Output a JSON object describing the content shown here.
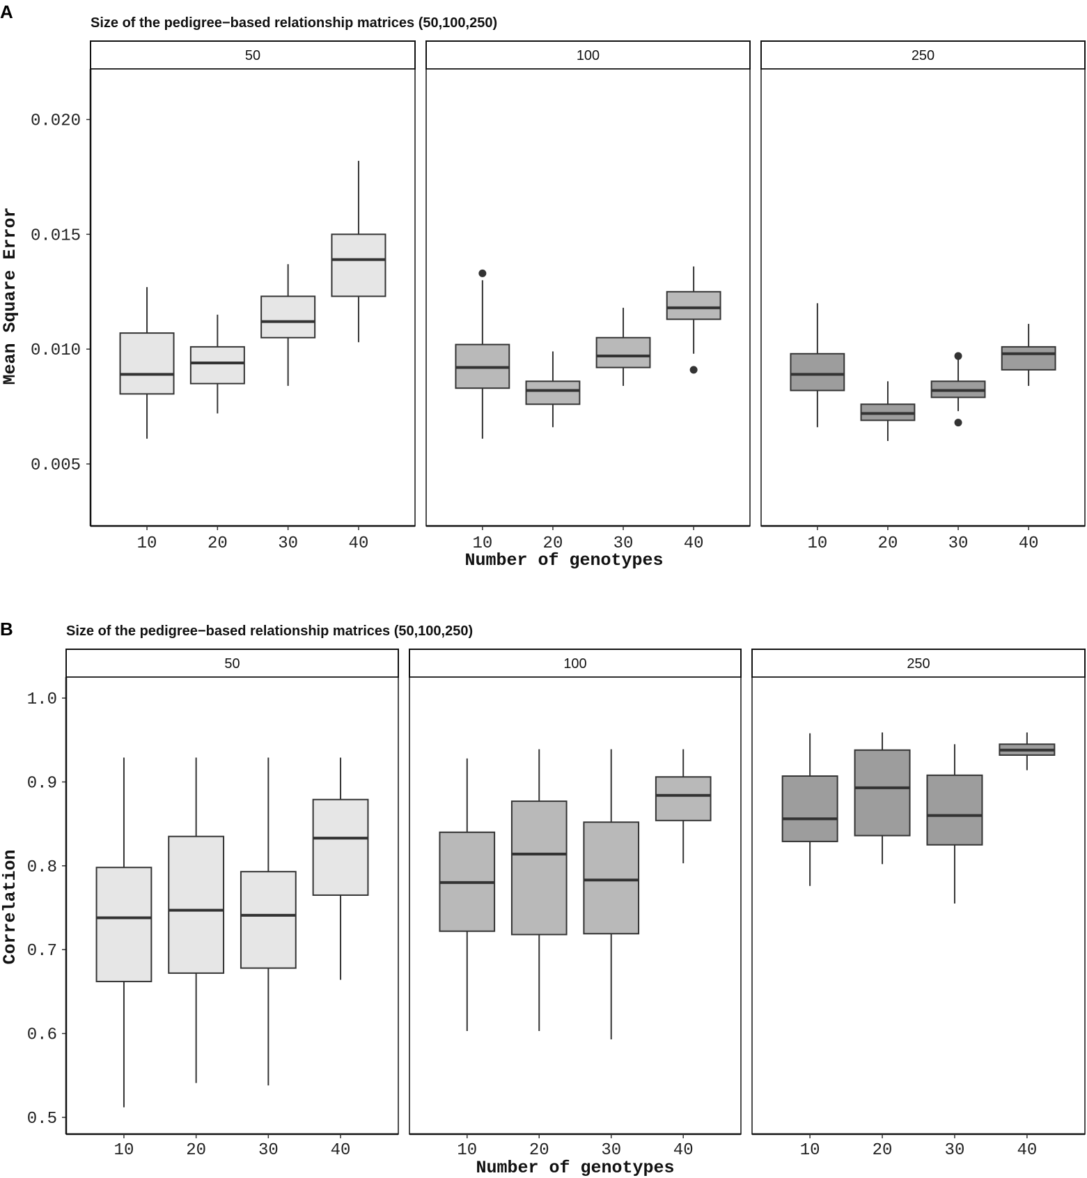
{
  "chart_data": [
    {
      "panel_label": "A",
      "type": "boxplot",
      "title": "Size of the pedigree−based relationship matrices (50,100,250)",
      "xlabel": "Number of genotypes",
      "ylabel": "Mean Square Error",
      "ylim": [
        0.0023,
        0.0222
      ],
      "yticks": [
        0.005,
        0.01,
        0.015,
        0.02
      ],
      "ytick_labels": [
        "0.005",
        "0.010",
        "0.015",
        "0.020"
      ],
      "categories": [
        "10",
        "20",
        "30",
        "40"
      ],
      "facets": [
        {
          "label": "50",
          "fill": "#e6e6e6",
          "boxes": [
            {
              "x": "10",
              "min": 0.0061,
              "q1": 0.00805,
              "median": 0.0089,
              "q3": 0.0107,
              "max": 0.0127,
              "outliers": []
            },
            {
              "x": "20",
              "min": 0.0072,
              "q1": 0.0085,
              "median": 0.0094,
              "q3": 0.0101,
              "max": 0.0115,
              "outliers": []
            },
            {
              "x": "30",
              "min": 0.0084,
              "q1": 0.0105,
              "median": 0.0112,
              "q3": 0.0123,
              "max": 0.0137,
              "outliers": []
            },
            {
              "x": "40",
              "min": 0.0103,
              "q1": 0.0123,
              "median": 0.0139,
              "q3": 0.015,
              "max": 0.0182,
              "outliers": []
            }
          ]
        },
        {
          "label": "100",
          "fill": "#b9b9b9",
          "boxes": [
            {
              "x": "10",
              "min": 0.0061,
              "q1": 0.0083,
              "median": 0.0092,
              "q3": 0.0102,
              "max": 0.013,
              "outliers": [
                0.0133
              ]
            },
            {
              "x": "20",
              "min": 0.0066,
              "q1": 0.0076,
              "median": 0.0082,
              "q3": 0.0086,
              "max": 0.0099,
              "outliers": []
            },
            {
              "x": "30",
              "min": 0.0084,
              "q1": 0.0092,
              "median": 0.0097,
              "q3": 0.0105,
              "max": 0.0118,
              "outliers": []
            },
            {
              "x": "40",
              "min": 0.0098,
              "q1": 0.0113,
              "median": 0.0118,
              "q3": 0.0125,
              "max": 0.0136,
              "outliers": [
                0.0091
              ]
            }
          ]
        },
        {
          "label": "250",
          "fill": "#9d9d9d",
          "boxes": [
            {
              "x": "10",
              "min": 0.0066,
              "q1": 0.0082,
              "median": 0.0089,
              "q3": 0.0098,
              "max": 0.012,
              "outliers": []
            },
            {
              "x": "20",
              "min": 0.006,
              "q1": 0.0069,
              "median": 0.0072,
              "q3": 0.0076,
              "max": 0.0086,
              "outliers": []
            },
            {
              "x": "30",
              "min": 0.0073,
              "q1": 0.0079,
              "median": 0.0082,
              "q3": 0.0086,
              "max": 0.0096,
              "outliers": [
                0.0097,
                0.0068
              ]
            },
            {
              "x": "40",
              "min": 0.0084,
              "q1": 0.0091,
              "median": 0.0098,
              "q3": 0.0101,
              "max": 0.0111,
              "outliers": []
            }
          ]
        }
      ]
    },
    {
      "panel_label": "B",
      "type": "boxplot",
      "title": "Size of the pedigree−based relationship matrices (50,100,250)",
      "xlabel": "Number of genotypes",
      "ylabel": "Correlation",
      "ylim": [
        0.48,
        1.025
      ],
      "yticks": [
        0.5,
        0.6,
        0.7,
        0.8,
        0.9,
        1.0
      ],
      "ytick_labels": [
        "0.5",
        "0.6",
        "0.7",
        "0.8",
        "0.9",
        "1.0"
      ],
      "categories": [
        "10",
        "20",
        "30",
        "40"
      ],
      "facets": [
        {
          "label": "50",
          "fill": "#e6e6e6",
          "boxes": [
            {
              "x": "10",
              "min": 0.512,
              "q1": 0.662,
              "median": 0.738,
              "q3": 0.798,
              "max": 0.929,
              "outliers": []
            },
            {
              "x": "20",
              "min": 0.541,
              "q1": 0.672,
              "median": 0.747,
              "q3": 0.835,
              "max": 0.929,
              "outliers": []
            },
            {
              "x": "30",
              "min": 0.538,
              "q1": 0.678,
              "median": 0.741,
              "q3": 0.793,
              "max": 0.929,
              "outliers": []
            },
            {
              "x": "40",
              "min": 0.664,
              "q1": 0.765,
              "median": 0.833,
              "q3": 0.879,
              "max": 0.929,
              "outliers": []
            }
          ]
        },
        {
          "label": "100",
          "fill": "#b9b9b9",
          "boxes": [
            {
              "x": "10",
              "min": 0.603,
              "q1": 0.722,
              "median": 0.78,
              "q3": 0.84,
              "max": 0.928,
              "outliers": []
            },
            {
              "x": "20",
              "min": 0.603,
              "q1": 0.718,
              "median": 0.814,
              "q3": 0.877,
              "max": 0.939,
              "outliers": []
            },
            {
              "x": "30",
              "min": 0.593,
              "q1": 0.719,
              "median": 0.783,
              "q3": 0.852,
              "max": 0.939,
              "outliers": []
            },
            {
              "x": "40",
              "min": 0.803,
              "q1": 0.854,
              "median": 0.884,
              "q3": 0.906,
              "max": 0.939,
              "outliers": []
            }
          ]
        },
        {
          "label": "250",
          "fill": "#9d9d9d",
          "boxes": [
            {
              "x": "10",
              "min": 0.776,
              "q1": 0.829,
              "median": 0.856,
              "q3": 0.907,
              "max": 0.958,
              "outliers": []
            },
            {
              "x": "20",
              "min": 0.802,
              "q1": 0.836,
              "median": 0.893,
              "q3": 0.938,
              "max": 0.959,
              "outliers": []
            },
            {
              "x": "30",
              "min": 0.755,
              "q1": 0.825,
              "median": 0.86,
              "q3": 0.908,
              "max": 0.945,
              "outliers": []
            },
            {
              "x": "40",
              "min": 0.914,
              "q1": 0.932,
              "median": 0.938,
              "q3": 0.945,
              "max": 0.959,
              "outliers": []
            }
          ]
        }
      ]
    }
  ]
}
